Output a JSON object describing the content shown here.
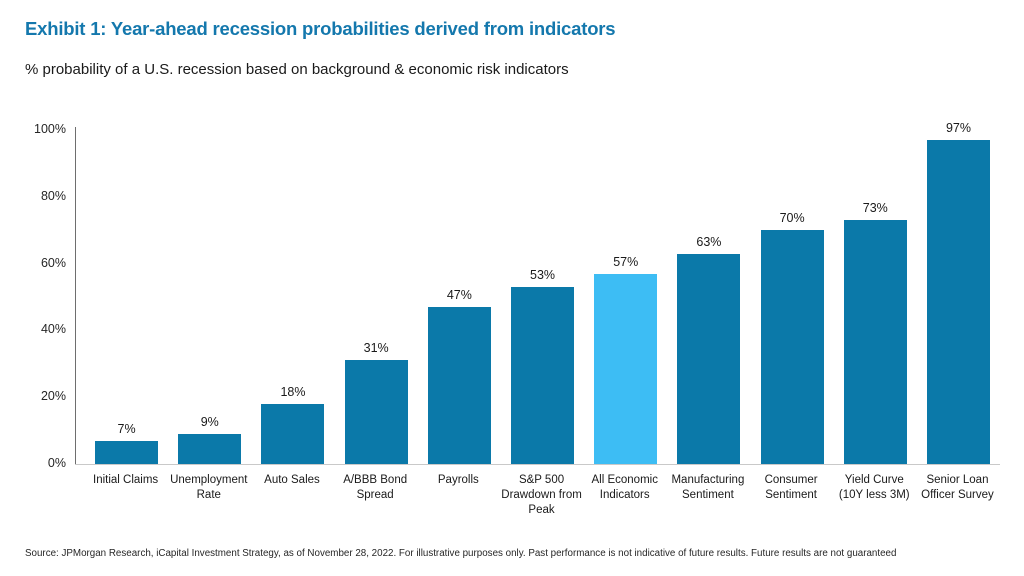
{
  "header": {
    "title": "Exhibit 1: Year-ahead recession probabilities derived from indicators",
    "subtitle": "% probability of a U.S. recession based on background & economic risk indicators"
  },
  "chart_data": {
    "type": "bar",
    "title": "Exhibit 1: Year-ahead recession probabilities derived from indicators",
    "subtitle": "% probability of a U.S. recession based on background & economic risk indicators",
    "categories": [
      "Initial Claims",
      "Unemployment Rate",
      "Auto Sales",
      "A/BBB Bond Spread",
      "Payrolls",
      "S&P 500 Drawdown from Peak",
      "All Economic Indicators",
      "Manufacturing Sentiment",
      "Consumer Sentiment",
      "Yield Curve (10Y less 3M)",
      "Senior Loan Officer Survey"
    ],
    "values": [
      7,
      9,
      18,
      31,
      47,
      53,
      57,
      63,
      70,
      73,
      97
    ],
    "value_suffix": "%",
    "highlight_index": 6,
    "highlighted_category": "All Economic Indicators",
    "y_ticks": [
      "0%",
      "20%",
      "40%",
      "60%",
      "80%",
      "100%"
    ],
    "ylim": [
      0,
      100
    ],
    "grid": false,
    "legend": false,
    "bar_labels_shown": true
  },
  "colors": {
    "title_blue": "#1478ad",
    "bar_default": "#0b79a9",
    "bar_highlight": "#3dbdf4",
    "axis_line": "#6e6e6e",
    "baseline": "#c9c9c9",
    "text_dark": "#1a1a1a"
  },
  "footer": {
    "source": "Source: JPMorgan Research, iCapital Investment Strategy, as of November 28, 2022. For illustrative purposes only. Past performance is not indicative of future results. Future results are not guaranteed"
  }
}
